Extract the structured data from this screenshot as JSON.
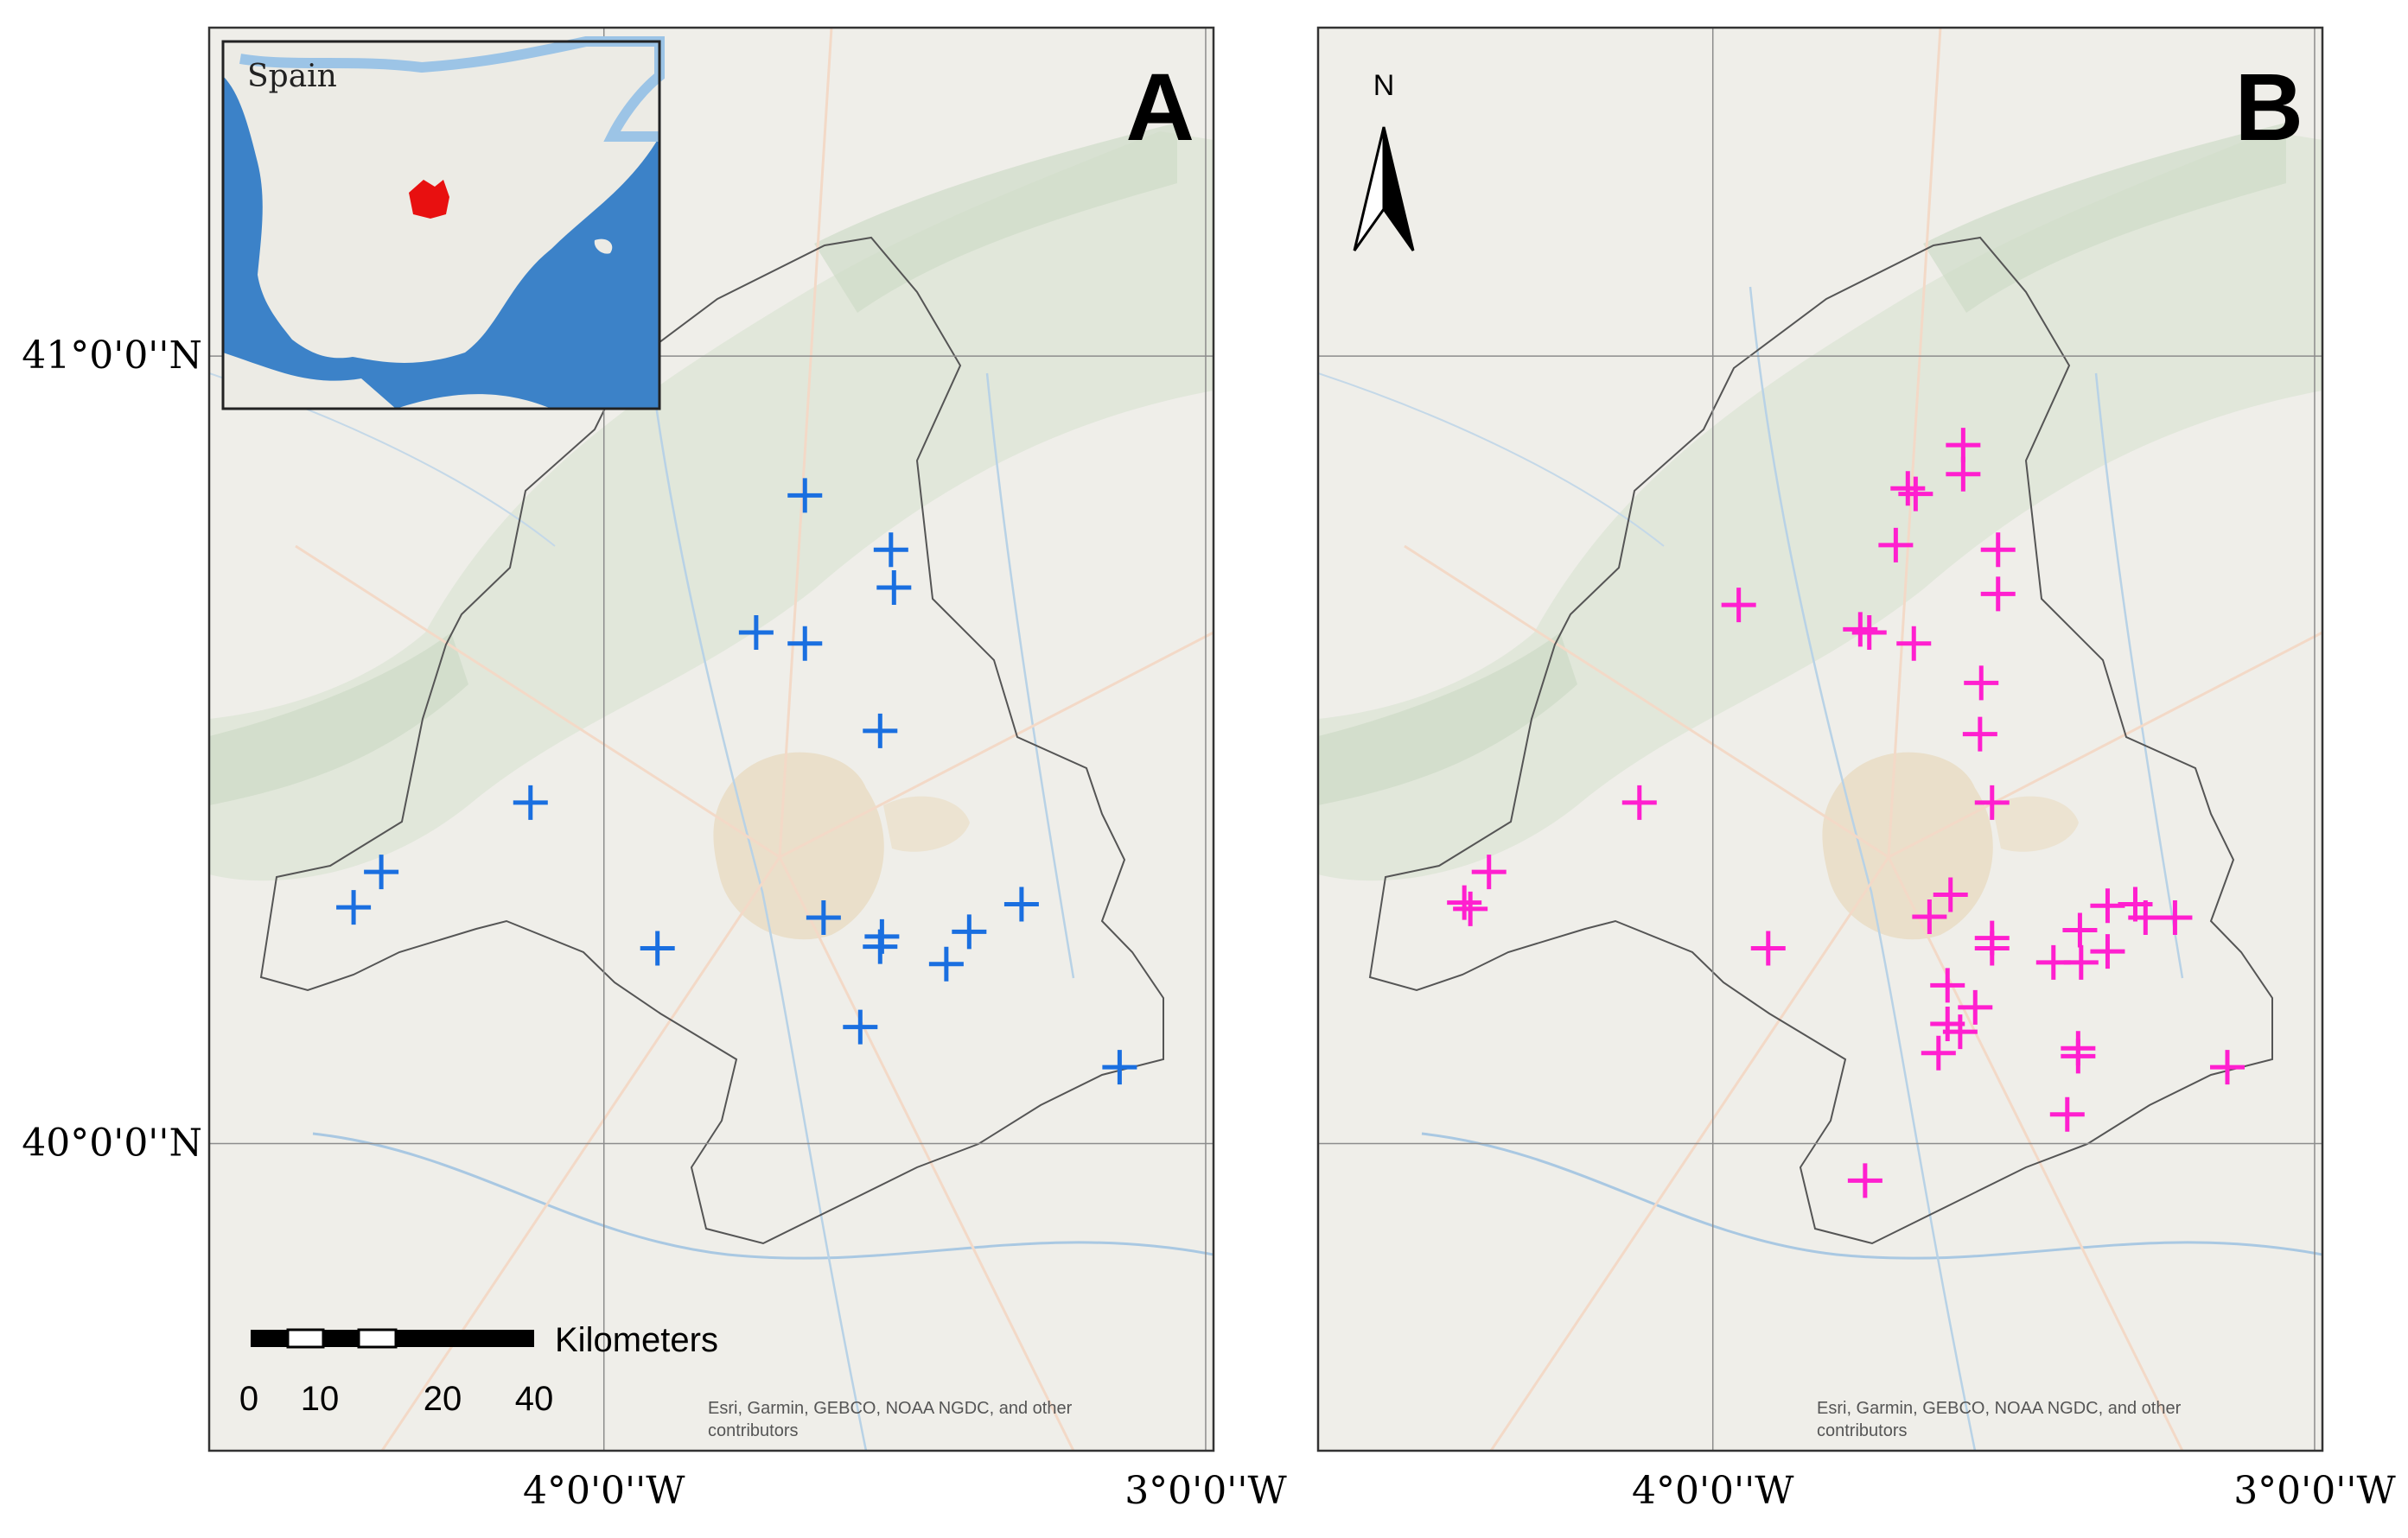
{
  "lonlim": [
    -4.656,
    -2.987
  ],
  "latlim": [
    39.61,
    41.417
  ],
  "lon_ticks": [
    {
      "value": -4,
      "label": "4°0'0''W"
    },
    {
      "value": -3,
      "label": "3°0'0''W"
    }
  ],
  "lat_ticks": [
    {
      "value": 41,
      "label": "41°0'0''N"
    },
    {
      "value": 40,
      "label": "40°0'0''N"
    }
  ],
  "inset_label": "Spain",
  "north_label": "N",
  "scale_bar": {
    "unit": "Kilometers",
    "labels": [
      "0",
      "10",
      "20",
      "40"
    ]
  },
  "attribution": [
    "Esri, Garmin, GEBCO, NOAA NGDC, and other",
    "contributors"
  ],
  "panels": [
    {
      "label": "A",
      "color": "#1a6fe0",
      "points": [
        {
          "lon": -3.666,
          "lat": 40.823
        },
        {
          "lon": -3.523,
          "lat": 40.754
        },
        {
          "lon": -3.518,
          "lat": 40.706
        },
        {
          "lon": -3.747,
          "lat": 40.649
        },
        {
          "lon": -3.666,
          "lat": 40.635
        },
        {
          "lon": -3.541,
          "lat": 40.524
        },
        {
          "lon": -4.122,
          "lat": 40.433
        },
        {
          "lon": -4.37,
          "lat": 40.345
        },
        {
          "lon": -4.416,
          "lat": 40.3
        },
        {
          "lon": -3.635,
          "lat": 40.287
        },
        {
          "lon": -3.911,
          "lat": 40.248
        },
        {
          "lon": -3.538,
          "lat": 40.263
        },
        {
          "lon": -3.541,
          "lat": 40.25
        },
        {
          "lon": -3.393,
          "lat": 40.269
        },
        {
          "lon": -3.306,
          "lat": 40.304
        },
        {
          "lon": -3.431,
          "lat": 40.228
        },
        {
          "lon": -3.574,
          "lat": 40.148
        },
        {
          "lon": -3.143,
          "lat": 40.097
        }
      ]
    },
    {
      "label": "B",
      "color": "#ff1fcf",
      "points": [
        {
          "lon": -3.584,
          "lat": 40.887
        },
        {
          "lon": -3.584,
          "lat": 40.85
        },
        {
          "lon": -3.676,
          "lat": 40.832
        },
        {
          "lon": -3.663,
          "lat": 40.825
        },
        {
          "lon": -3.696,
          "lat": 40.76
        },
        {
          "lon": -3.526,
          "lat": 40.754
        },
        {
          "lon": -3.526,
          "lat": 40.698
        },
        {
          "lon": -3.957,
          "lat": 40.684
        },
        {
          "lon": -3.755,
          "lat": 40.653
        },
        {
          "lon": -3.74,
          "lat": 40.649
        },
        {
          "lon": -3.666,
          "lat": 40.635
        },
        {
          "lon": -3.554,
          "lat": 40.585
        },
        {
          "lon": -3.556,
          "lat": 40.52
        },
        {
          "lon": -3.536,
          "lat": 40.433
        },
        {
          "lon": -4.122,
          "lat": 40.433
        },
        {
          "lon": -4.372,
          "lat": 40.345
        },
        {
          "lon": -4.413,
          "lat": 40.306
        },
        {
          "lon": -4.403,
          "lat": 40.298
        },
        {
          "lon": -3.605,
          "lat": 40.316
        },
        {
          "lon": -3.64,
          "lat": 40.288
        },
        {
          "lon": -3.908,
          "lat": 40.248
        },
        {
          "lon": -3.536,
          "lat": 40.261
        },
        {
          "lon": -3.536,
          "lat": 40.248
        },
        {
          "lon": -3.39,
          "lat": 40.271
        },
        {
          "lon": -3.344,
          "lat": 40.302
        },
        {
          "lon": -3.298,
          "lat": 40.304
        },
        {
          "lon": -3.281,
          "lat": 40.287
        },
        {
          "lon": -3.232,
          "lat": 40.287
        },
        {
          "lon": -3.434,
          "lat": 40.23
        },
        {
          "lon": -3.388,
          "lat": 40.23
        },
        {
          "lon": -3.344,
          "lat": 40.244
        },
        {
          "lon": -3.61,
          "lat": 40.201
        },
        {
          "lon": -3.564,
          "lat": 40.173
        },
        {
          "lon": -3.61,
          "lat": 40.152
        },
        {
          "lon": -3.589,
          "lat": 40.142
        },
        {
          "lon": -3.625,
          "lat": 40.115
        },
        {
          "lon": -3.393,
          "lat": 40.121
        },
        {
          "lon": -3.393,
          "lat": 40.111
        },
        {
          "lon": -3.145,
          "lat": 40.097
        },
        {
          "lon": -3.411,
          "lat": 40.037
        },
        {
          "lon": -3.747,
          "lat": 39.953
        }
      ]
    }
  ]
}
